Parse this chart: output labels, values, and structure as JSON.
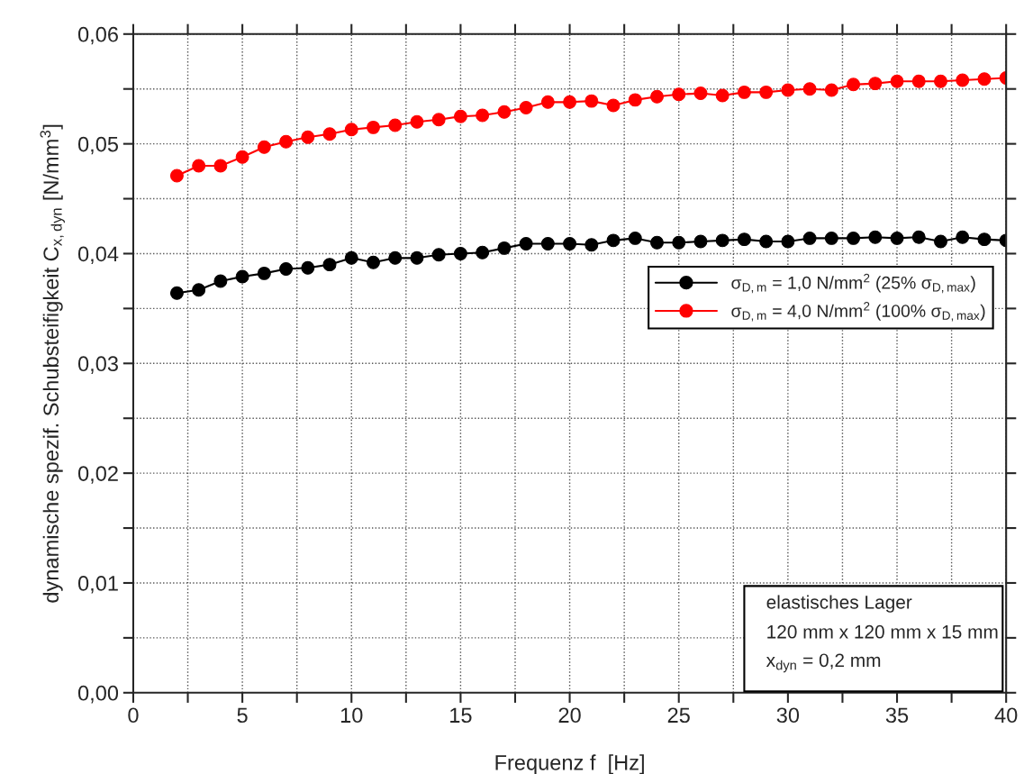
{
  "chart_data": {
    "type": "line",
    "xlabel": "Frequenz f  [Hz]",
    "ylabel": "dynamische spezif. Schubsteifigkeit C$_{x,dyn}$ [N/mm$^{3}$]",
    "x": [
      2,
      3,
      4,
      5,
      6,
      7,
      8,
      9,
      10,
      11,
      12,
      13,
      14,
      15,
      16,
      17,
      18,
      19,
      20,
      21,
      22,
      23,
      24,
      25,
      26,
      27,
      28,
      29,
      30,
      31,
      32,
      33,
      34,
      35,
      36,
      37,
      38,
      39,
      40
    ],
    "series": [
      {
        "name": "σ$_{D,m}$ = 1,0 N/mm$^{2}$ (25% σ$_{D,max}$)",
        "color": "#000000",
        "values": [
          0.0364,
          0.0367,
          0.0375,
          0.0379,
          0.0382,
          0.0386,
          0.0387,
          0.039,
          0.0396,
          0.0392,
          0.0396,
          0.0396,
          0.0399,
          0.04,
          0.0401,
          0.0405,
          0.0409,
          0.0409,
          0.0409,
          0.0408,
          0.0412,
          0.0414,
          0.041,
          0.041,
          0.0411,
          0.0412,
          0.0413,
          0.0411,
          0.0411,
          0.0414,
          0.0414,
          0.0414,
          0.0415,
          0.0414,
          0.0415,
          0.0411,
          0.0415,
          0.0413,
          0.0412
        ]
      },
      {
        "name": "σ$_{D,m}$ = 4,0 N/mm$^{2}$ (100% σ$_{D,max}$)",
        "color": "#ff0000",
        "values": [
          0.0471,
          0.048,
          0.048,
          0.0488,
          0.0497,
          0.0502,
          0.0506,
          0.0509,
          0.0513,
          0.0515,
          0.0517,
          0.052,
          0.0522,
          0.0525,
          0.0526,
          0.0529,
          0.0533,
          0.0538,
          0.0538,
          0.0539,
          0.0535,
          0.054,
          0.0543,
          0.0545,
          0.0546,
          0.0544,
          0.0547,
          0.0547,
          0.0549,
          0.055,
          0.0549,
          0.0554,
          0.0555,
          0.0557,
          0.0557,
          0.0557,
          0.0558,
          0.0559,
          0.056
        ]
      }
    ],
    "xlim": [
      0,
      40
    ],
    "xticks": [
      0,
      {
        "value": 2.5,
        "label": null
      },
      5,
      {
        "value": 7.5,
        "label": null
      },
      10,
      {
        "value": 12.5,
        "label": null
      },
      15,
      {
        "value": 17.5,
        "label": null
      },
      20,
      {
        "value": 22.5,
        "label": null
      },
      25,
      {
        "value": 27.5,
        "label": null
      },
      30,
      {
        "value": 32.5,
        "label": null
      },
      35,
      {
        "value": 37.5,
        "label": null
      },
      40
    ],
    "ylim": [
      0,
      0.06
    ],
    "yticks": [
      {
        "value": 0,
        "label": "0,00"
      },
      {
        "value": 0.005,
        "label": null
      },
      {
        "value": 0.01,
        "label": "0,01"
      },
      {
        "value": 0.015,
        "label": null
      },
      {
        "value": 0.02,
        "label": "0,02"
      },
      {
        "value": 0.025,
        "label": null
      },
      {
        "value": 0.03,
        "label": "0,03"
      },
      {
        "value": 0.035,
        "label": null
      },
      {
        "value": 0.04,
        "label": "0,04"
      },
      {
        "value": 0.045,
        "label": null
      },
      {
        "value": 0.05,
        "label": "0,05"
      },
      {
        "value": 0.055,
        "label": null
      },
      {
        "value": 0.06,
        "label": "0,06"
      }
    ],
    "grid": true,
    "legend": "right",
    "marker": "circle",
    "line_style": "solid",
    "annotations": [
      "elastisches Lager",
      "120 mm x 120 mm x 15 mm",
      "x$_{dyn}$ = 0,2 mm"
    ]
  }
}
